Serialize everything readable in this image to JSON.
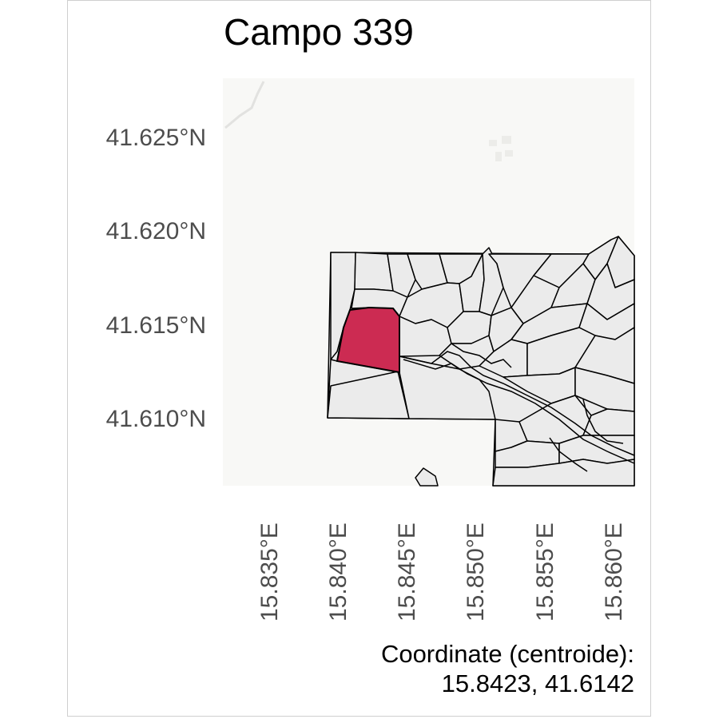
{
  "title": "Campo 339",
  "map": {
    "y_axis": {
      "ticks": [
        "41.625°N",
        "41.620°N",
        "41.615°N",
        "41.610°N"
      ]
    },
    "x_axis": {
      "ticks": [
        "15.835°E",
        "15.840°E",
        "15.845°E",
        "15.850°E",
        "15.855°E",
        "15.860°E"
      ]
    },
    "colors": {
      "background": "#f8f8f6",
      "parcel_fill": "#ebebeb",
      "parcel_stroke": "#000000",
      "highlight": "#cc2b52"
    }
  },
  "caption": {
    "line1": "Coordinate (centroide):",
    "line2": "15.8423, 41.6142"
  }
}
